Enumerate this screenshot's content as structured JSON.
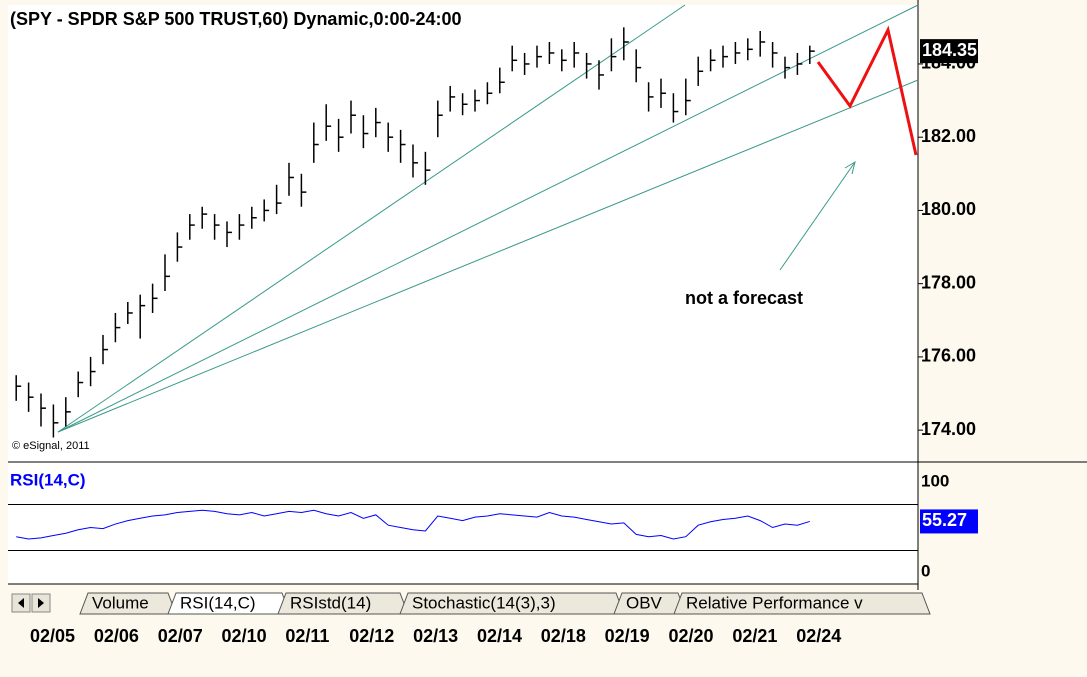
{
  "chart_data": [
    {
      "type": "ohlc",
      "title": "(SPY - SPDR S&P 500 TRUST,60) Dynamic,0:00-24:00",
      "watermark": "© eSignal, 2011",
      "annotation": "not a forecast",
      "categories": [
        "02/05",
        null,
        null,
        null,
        null,
        "02/06",
        null,
        null,
        null,
        null,
        "02/07",
        null,
        null,
        null,
        null,
        "02/10",
        null,
        null,
        null,
        null,
        "02/11",
        null,
        null,
        null,
        null,
        "02/12",
        null,
        null,
        null,
        null,
        "02/13",
        null,
        null,
        null,
        null,
        "02/14",
        null,
        null,
        null,
        null,
        "02/18",
        null,
        null,
        null,
        null,
        "02/19",
        null,
        null,
        null,
        null,
        "02/20",
        null,
        null,
        null,
        null,
        "02/21",
        null,
        null,
        null,
        null,
        "02/24",
        null,
        null,
        null,
        null
      ],
      "close": [
        175.2,
        174.9,
        174.6,
        174.2,
        174.5,
        175.3,
        175.6,
        176.2,
        176.8,
        177.2,
        177.4,
        177.6,
        178.2,
        179.0,
        179.6,
        179.9,
        179.6,
        179.4,
        179.6,
        179.8,
        180.0,
        180.2,
        180.9,
        180.5,
        181.8,
        182.3,
        182.0,
        182.6,
        182.1,
        182.4,
        182.0,
        181.8,
        181.3,
        181.1,
        182.6,
        183.1,
        182.9,
        183.0,
        183.2,
        183.5,
        184.1,
        184.0,
        184.2,
        184.3,
        184.1,
        184.3,
        184.0,
        183.7,
        184.2,
        184.6,
        183.9,
        183.1,
        183.2,
        182.7,
        183.0,
        183.8,
        184.1,
        184.2,
        184.3,
        184.4,
        184.6,
        184.3,
        183.9,
        184.0,
        184.35
      ],
      "high": [
        175.5,
        175.3,
        175.0,
        174.7,
        174.9,
        175.6,
        176.0,
        176.6,
        177.2,
        177.5,
        177.7,
        178.0,
        178.8,
        179.4,
        179.9,
        180.1,
        179.9,
        179.7,
        179.9,
        180.1,
        180.3,
        180.7,
        181.3,
        181.0,
        182.4,
        182.9,
        182.5,
        183.0,
        182.6,
        182.8,
        182.4,
        182.2,
        181.8,
        181.6,
        183.0,
        183.4,
        183.2,
        183.3,
        183.5,
        183.9,
        184.5,
        184.3,
        184.5,
        184.6,
        184.4,
        184.6,
        184.3,
        184.1,
        184.7,
        185.0,
        184.4,
        183.5,
        183.6,
        183.2,
        183.6,
        184.2,
        184.4,
        184.5,
        184.6,
        184.7,
        184.9,
        184.6,
        184.2,
        184.3,
        184.5
      ],
      "low": [
        174.8,
        174.5,
        174.1,
        173.8,
        174.1,
        174.9,
        175.2,
        175.8,
        176.4,
        176.9,
        176.5,
        177.2,
        177.8,
        178.6,
        179.2,
        179.5,
        179.2,
        179.0,
        179.2,
        179.5,
        179.7,
        179.9,
        180.4,
        180.1,
        181.3,
        181.9,
        181.6,
        182.1,
        181.7,
        182.0,
        181.6,
        181.3,
        180.9,
        180.7,
        182.0,
        182.7,
        182.6,
        182.7,
        182.9,
        183.2,
        183.8,
        183.7,
        183.9,
        184.0,
        183.8,
        183.9,
        183.6,
        183.3,
        183.8,
        184.1,
        183.5,
        182.7,
        182.8,
        182.4,
        182.6,
        183.4,
        183.8,
        183.9,
        184.0,
        184.1,
        184.2,
        183.9,
        183.6,
        183.7,
        184.0
      ],
      "color": "#000000",
      "ylim": [
        173.13,
        185.61
      ],
      "yticks": [
        {
          "value": 174,
          "label": "174.00"
        },
        {
          "value": 176,
          "label": "176.00"
        },
        {
          "value": 178,
          "label": "178.00"
        },
        {
          "value": 180,
          "label": "180.00"
        },
        {
          "value": 182,
          "label": "182.00"
        },
        {
          "value": 184,
          "label": "184.00"
        }
      ]
    },
    {
      "type": "line",
      "title": "RSI(14,C)",
      "values": [
        42,
        40,
        41,
        43,
        45,
        48,
        50,
        49,
        53,
        56,
        58,
        60,
        61,
        63,
        64,
        65,
        64,
        62,
        61,
        63,
        60,
        62,
        64,
        63,
        65,
        62,
        60,
        63,
        58,
        61,
        52,
        50,
        48,
        47,
        60,
        58,
        56,
        59,
        60,
        62,
        61,
        60,
        59,
        63,
        60,
        59,
        57,
        55,
        53,
        54,
        44,
        42,
        43,
        40,
        42,
        52,
        55,
        57,
        58,
        60,
        56,
        50,
        53,
        52,
        55.27
      ],
      "color": "#0000ff",
      "levels": [
        70,
        30
      ],
      "ylim": [
        0,
        100
      ],
      "yticks": [
        0,
        100
      ]
    }
  ],
  "tabs": [
    "Volume",
    "RSI(14,C)",
    "RSIstd(14)",
    "Stochastic(14(3),3)",
    "OBV",
    "Relative Performance v"
  ]
}
